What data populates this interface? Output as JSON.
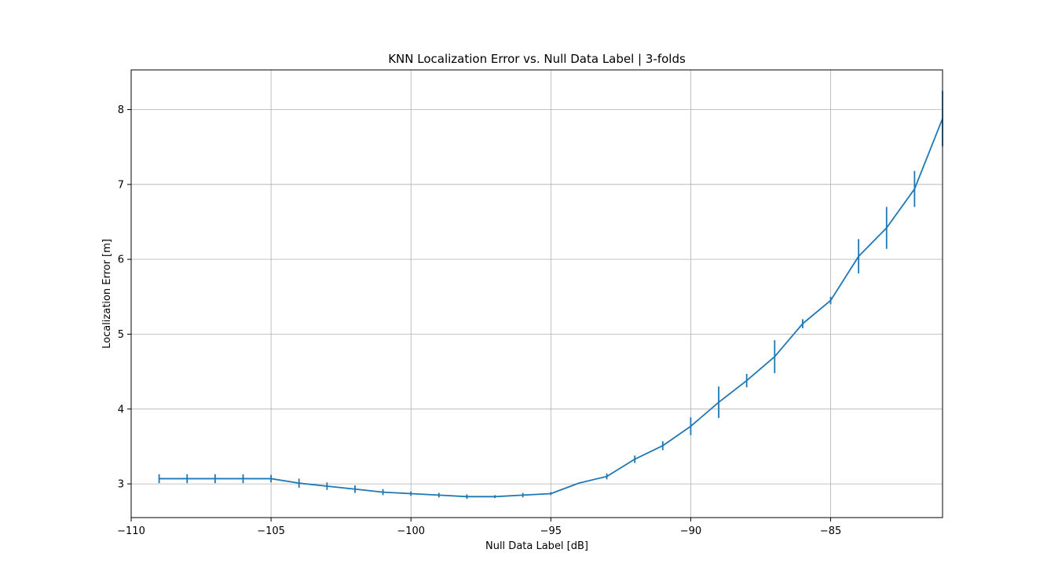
{
  "chart_data": {
    "type": "line",
    "title": "KNN Localization Error vs. Null Data Label | 3-folds",
    "xlabel": "Null Data Label [dB]",
    "ylabel": "Localization Error [m]",
    "xlim": [
      -110,
      -81
    ],
    "ylim": [
      2.55,
      8.53
    ],
    "xticks": [
      -110,
      -105,
      -100,
      -95,
      -90,
      -85
    ],
    "xtick_labels": [
      "−110",
      "−105",
      "−100",
      "−95",
      "−90",
      "−85"
    ],
    "yticks": [
      3,
      4,
      5,
      6,
      7,
      8
    ],
    "ytick_labels": [
      "3",
      "4",
      "5",
      "6",
      "7",
      "8"
    ],
    "grid": true,
    "color": "#1f77b4",
    "series": [
      {
        "x": [
          -109,
          -108,
          -107,
          -106,
          -105,
          -104,
          -103,
          -102,
          -101,
          -100,
          -99,
          -98,
          -97,
          -96,
          -95,
          -94,
          -93,
          -92,
          -91,
          -90,
          -89,
          -88,
          -87,
          -86,
          -85,
          -84,
          -83,
          -82,
          -81
        ],
        "y": [
          3.07,
          3.07,
          3.07,
          3.07,
          3.07,
          3.01,
          2.97,
          2.93,
          2.89,
          2.87,
          2.85,
          2.83,
          2.83,
          2.85,
          2.87,
          3.01,
          3.1,
          3.33,
          3.51,
          3.77,
          4.09,
          4.38,
          4.7,
          5.14,
          5.45,
          6.04,
          6.42,
          6.94,
          7.88
        ],
        "yerr": [
          0.06,
          0.06,
          0.06,
          0.06,
          0.05,
          0.06,
          0.05,
          0.05,
          0.04,
          0.03,
          0.03,
          0.03,
          0.02,
          0.03,
          0.02,
          0.0,
          0.04,
          0.05,
          0.06,
          0.12,
          0.21,
          0.09,
          0.22,
          0.06,
          0.05,
          0.23,
          0.28,
          0.24,
          0.37
        ]
      }
    ]
  }
}
